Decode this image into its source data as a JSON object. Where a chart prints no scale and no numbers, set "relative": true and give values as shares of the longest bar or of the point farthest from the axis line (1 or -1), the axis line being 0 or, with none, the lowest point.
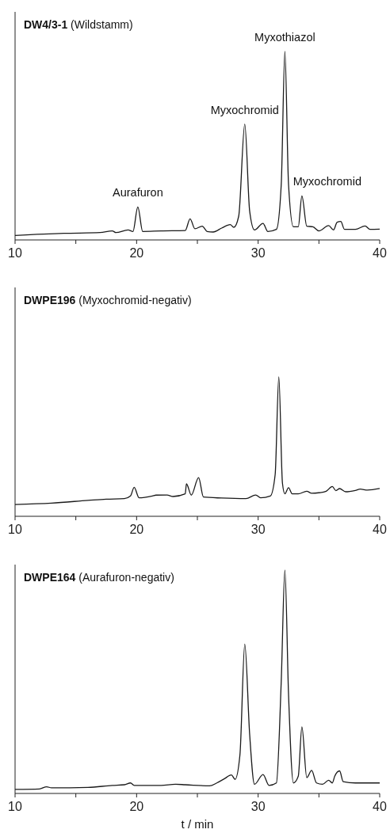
{
  "chart_data": [
    {
      "type": "line",
      "title": "DW4/3-1",
      "subtitle": "(Wildstamm)",
      "relative": true,
      "xlim": [
        10,
        40
      ],
      "xticks": [
        10,
        {
          "value": 15,
          "label": null
        },
        20,
        {
          "value": 25,
          "label": null
        },
        30,
        {
          "value": 35,
          "label": null
        },
        40
      ],
      "x": [
        10,
        14,
        17,
        18,
        18.3,
        19.3,
        19.7,
        20.1,
        20.5,
        22,
        24,
        24.4,
        24.8,
        25.4,
        25.8,
        26.3,
        27,
        27.7,
        28,
        28.4,
        28.9,
        29.3,
        29.7,
        30.4,
        30.8,
        31.5,
        31.9,
        32.2,
        32.5,
        32.9,
        33.3,
        33.6,
        34,
        34.5,
        35,
        35.8,
        36.2,
        36.5,
        36.8,
        37.1,
        38,
        38.8,
        39.2,
        40
      ],
      "series": [
        {
          "color": "#1a1a1a",
          "values": [
            0.024,
            0.035,
            0.039,
            0.048,
            0.039,
            0.053,
            0.045,
            0.175,
            0.045,
            0.048,
            0.05,
            0.112,
            0.059,
            0.073,
            0.045,
            0.042,
            0.063,
            0.081,
            0.067,
            0.126,
            0.615,
            0.154,
            0.053,
            0.088,
            0.045,
            0.056,
            0.294,
            1,
            0.294,
            0.07,
            0.07,
            0.234,
            0.073,
            0.07,
            0.048,
            0.076,
            0.053,
            0.094,
            0.098,
            0.056,
            0.056,
            0.074,
            0.056,
            0.057
          ]
        }
      ],
      "annotations": [
        {
          "text": "Aurafuron",
          "x": 20.1,
          "y": 0.175
        },
        {
          "text": "Myxochromid",
          "x": 28.9,
          "y": 0.615
        },
        {
          "text": "Myxothiazol",
          "x": 32.2,
          "y": 1
        },
        {
          "text": "Myxochromid",
          "x": 33.6,
          "y": 0.234
        }
      ]
    },
    {
      "type": "line",
      "title": "DWPE196",
      "subtitle": "(Myxochromid-negativ)",
      "relative": true,
      "xlim": [
        10,
        40
      ],
      "xticks": [
        10,
        {
          "value": 15,
          "label": null
        },
        20,
        {
          "value": 25,
          "label": null
        },
        30,
        {
          "value": 35,
          "label": null
        },
        40
      ],
      "x": [
        10,
        13,
        16,
        17.5,
        19,
        19.5,
        19.8,
        20.2,
        21.3,
        21.6,
        22.5,
        23,
        24,
        24.1,
        24.5,
        25.1,
        25.5,
        27,
        29,
        29.8,
        30.2,
        31,
        31.4,
        31.7,
        32,
        32.2,
        32.5,
        32.8,
        33.3,
        34,
        34.4,
        35,
        35.6,
        36.1,
        36.4,
        36.7,
        37.2,
        38,
        38.4,
        39,
        40
      ],
      "series": [
        {
          "color": "#1a1a1a",
          "values": [
            0.085,
            0.095,
            0.114,
            0.123,
            0.127,
            0.146,
            0.208,
            0.133,
            0.146,
            0.152,
            0.153,
            0.142,
            0.161,
            0.233,
            0.152,
            0.278,
            0.138,
            0.131,
            0.127,
            0.153,
            0.133,
            0.146,
            0.3,
            1,
            0.237,
            0.161,
            0.205,
            0.161,
            0.161,
            0.18,
            0.165,
            0.169,
            0.18,
            0.214,
            0.184,
            0.199,
            0.176,
            0.186,
            0.195,
            0.188,
            0.199
          ]
        }
      ]
    },
    {
      "type": "line",
      "title": "DWPE164",
      "subtitle": "(Aurafuron-negativ)",
      "xlabel": "t / min",
      "relative": true,
      "xlim": [
        10,
        40
      ],
      "xticks": [
        10,
        {
          "value": 15,
          "label": null
        },
        20,
        {
          "value": 25,
          "label": null
        },
        30,
        {
          "value": 35,
          "label": null
        },
        40
      ],
      "x": [
        10,
        12,
        12.6,
        13,
        16,
        18,
        19,
        19.5,
        19.8,
        22,
        23.2,
        24,
        26,
        26.6,
        27.2,
        27.8,
        28.1,
        28.5,
        28.9,
        29.3,
        29.7,
        30.4,
        30.9,
        31.5,
        31.9,
        32.2,
        32.5,
        32.9,
        33.3,
        33.6,
        34,
        34.4,
        34.8,
        35.3,
        35.8,
        36.1,
        36.3,
        36.7,
        37,
        38,
        40
      ],
      "series": [
        {
          "color": "#1a1a1a",
          "values": [
            0.018,
            0.02,
            0.03,
            0.025,
            0.027,
            0.036,
            0.039,
            0.047,
            0.036,
            0.036,
            0.041,
            0.039,
            0.034,
            0.047,
            0.065,
            0.083,
            0.063,
            0.172,
            0.669,
            0.266,
            0.041,
            0.085,
            0.036,
            0.047,
            0.503,
            1,
            0.444,
            0.047,
            0.077,
            0.298,
            0.071,
            0.103,
            0.047,
            0.041,
            0.059,
            0.047,
            0.077,
            0.101,
            0.053,
            0.047,
            0.047
          ]
        }
      ]
    }
  ]
}
